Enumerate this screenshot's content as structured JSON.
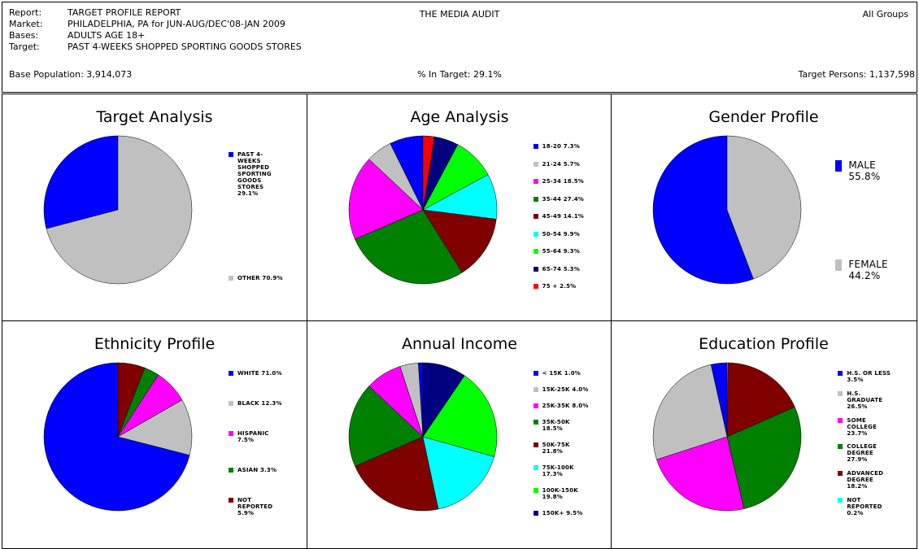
{
  "header": {
    "rows": [
      {
        "label": "Report:",
        "text": "TARGET PROFILE REPORT"
      },
      {
        "label": "Market:",
        "text": "PHILADELPHIA, PA for JUN-AUG/DEC'08-JAN 2009"
      },
      {
        "label": "Bases:",
        "text": "ADULTS AGE 18+"
      },
      {
        "label": "Target:",
        "text": "PAST 4-WEEKS SHOPPED SPORTING GOODS STORES"
      }
    ],
    "center_title": "THE MEDIA AUDIT",
    "right_title": "All Groups",
    "base_population": "Base Population: 3,914,073",
    "in_target": "% In Target: 29.1%",
    "target_persons": "Target Persons: 1,137,598"
  },
  "chart_data": [
    {
      "type": "pie",
      "title": "Target Analysis",
      "categories": [
        "PAST 4-WEEKS SHOPPED SPORTING GOODS STORES",
        "OTHER"
      ],
      "values": [
        29.1,
        70.9
      ],
      "value_labels": [
        "29.1%",
        "70.9%"
      ],
      "colors": [
        "#0000ff",
        "#c0c0c0"
      ]
    },
    {
      "type": "pie",
      "title": "Age Analysis",
      "categories": [
        "18-20",
        "21-24",
        "25-34",
        "35-44",
        "45-49",
        "50-54",
        "55-64",
        "65-74",
        "75 +"
      ],
      "values": [
        7.3,
        5.7,
        18.5,
        27.4,
        14.1,
        9.9,
        9.3,
        5.3,
        2.5
      ],
      "value_labels": [
        "7.3%",
        "5.7%",
        "18.5%",
        "27.4%",
        "14.1%",
        "9.9%",
        "9.3%",
        "5.3%",
        "2.5%"
      ],
      "colors": [
        "#0000ff",
        "#c0c0c0",
        "#ff00ff",
        "#008000",
        "#800000",
        "#00ffff",
        "#00ff00",
        "#000080",
        "#ff0000"
      ]
    },
    {
      "type": "pie",
      "title": "Gender Profile",
      "categories": [
        "MALE",
        "FEMALE"
      ],
      "values": [
        55.8,
        44.2
      ],
      "value_labels": [
        "55.8%",
        "44.2%"
      ],
      "colors": [
        "#0000ff",
        "#c0c0c0"
      ]
    },
    {
      "type": "pie",
      "title": "Ethnicity Profile",
      "categories": [
        "WHITE",
        "BLACK",
        "HISPANIC",
        "ASIAN",
        "NOT REPORTED"
      ],
      "values": [
        71.0,
        12.3,
        7.5,
        3.3,
        5.9
      ],
      "value_labels": [
        "71.0%",
        "12.3%",
        "7.5%",
        "3.3%",
        "5.9%"
      ],
      "colors": [
        "#0000ff",
        "#c0c0c0",
        "#ff00ff",
        "#008000",
        "#800000"
      ]
    },
    {
      "type": "pie",
      "title": "Annual Income",
      "categories": [
        "< 15K",
        "15K-25K",
        "25K-35K",
        "35K-50K",
        "50K-75K",
        "75K-100K",
        "100K-150K",
        "150K+"
      ],
      "values": [
        1.0,
        4.0,
        8.0,
        18.5,
        21.8,
        17.3,
        19.8,
        9.5
      ],
      "value_labels": [
        "1.0%",
        "4.0%",
        "8.0%",
        "18.5%",
        "21.8%",
        "17.3%",
        "19.8%",
        "9.5%"
      ],
      "colors": [
        "#0000ff",
        "#c0c0c0",
        "#ff00ff",
        "#008000",
        "#800000",
        "#00ffff",
        "#00ff00",
        "#000080"
      ]
    },
    {
      "type": "pie",
      "title": "Education Profile",
      "categories": [
        "H.S. OR LESS",
        "H.S. GRADUATE",
        "SOME COLLEGE",
        "COLLEGE DEGREE",
        "ADVANCED DEGREE",
        "NOT REPORTED"
      ],
      "values": [
        3.5,
        26.5,
        23.7,
        27.9,
        18.2,
        0.2
      ],
      "value_labels": [
        "3.5%",
        "26.5%",
        "23.7%",
        "27.9%",
        "18.2%",
        "0.2%"
      ],
      "colors": [
        "#0000ff",
        "#c0c0c0",
        "#ff00ff",
        "#008000",
        "#800000",
        "#00ffff"
      ]
    }
  ]
}
